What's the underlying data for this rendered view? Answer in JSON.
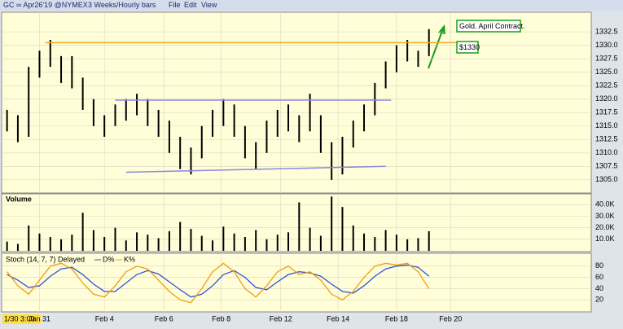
{
  "header": {
    "symbol": "GC ∞ Apr26'19 @NYMEX",
    "period": "3 Weeks/Hourly bars",
    "menu": [
      "File",
      "Edit",
      "View"
    ]
  },
  "chart_data": {
    "type": "price-bars",
    "color": "#000000",
    "xlim": [
      -0.5,
      54
    ],
    "xticks": [
      {
        "value": 3,
        "label": "Jan 31"
      },
      {
        "value": 9,
        "label": "Feb 4"
      },
      {
        "value": 14.5,
        "label": "Feb 6"
      },
      {
        "value": 19.8,
        "label": "Feb 8"
      },
      {
        "value": 25.3,
        "label": "Feb 12"
      },
      {
        "value": 30.6,
        "label": "Feb 14"
      },
      {
        "value": 36,
        "label": "Feb 18"
      },
      {
        "value": 41,
        "label": "Feb 20"
      }
    ],
    "start_label": "1/30 3:00",
    "ylim": [
      1302.7,
      1336
    ],
    "yticks": [
      {
        "value": 1305,
        "label": "1305.0"
      },
      1307.5,
      {
        "value": 1310,
        "label": "1310.0"
      },
      1312.5,
      {
        "value": 1315,
        "label": "1315.0"
      },
      1317.5,
      {
        "value": 1320,
        "label": "1320.0"
      },
      1322.5,
      {
        "value": 1325,
        "label": "1325.0"
      },
      1327.5,
      {
        "value": 1330,
        "label": "1330.0"
      },
      1332.5
    ],
    "grid": true,
    "high": [
      1318,
      1317,
      1326,
      1329,
      1331,
      1328,
      1328,
      1324,
      1320,
      1317,
      1319,
      1320,
      1321,
      1320,
      1318,
      1316,
      1313,
      1311,
      1315,
      1318,
      1320,
      1319,
      1315,
      1312,
      1316,
      1318,
      1319,
      1317,
      1321,
      1317,
      1312,
      1313,
      1316,
      1319,
      1323,
      1327,
      1330,
      1331,
      1329,
      1333
    ],
    "low": [
      1314,
      1312,
      1313,
      1324,
      1326,
      1323,
      1322,
      1318,
      1315,
      1313,
      1315,
      1316,
      1317,
      1315,
      1313,
      1310,
      1307,
      1306,
      1309,
      1313,
      1315,
      1313,
      1309,
      1307,
      1310,
      1313,
      1314,
      1312,
      1314,
      1310,
      1305,
      1306,
      1311,
      1314,
      1317,
      1322,
      1325,
      1327,
      1326,
      1328
    ],
    "trend_lines": [
      {
        "color": "#f5a623",
        "x": [
          3.5,
          41.5
        ],
        "y": [
          1330.5,
          1330.5
        ]
      },
      {
        "color": "#8a8ae0",
        "x": [
          10,
          35.5
        ],
        "y": [
          1319.8,
          1319.8
        ]
      },
      {
        "color": "#8a8ae0",
        "x": [
          11,
          35
        ],
        "y": [
          1306.4,
          1307.5
        ]
      }
    ],
    "annotations": [
      {
        "text": "Gold. April Contract.",
        "color": "#1a9e1a"
      },
      {
        "text": "$1330",
        "color": "#1a9e1a"
      }
    ],
    "volume": {
      "title": "Volume",
      "color": "#000000",
      "ylim": [
        0,
        48000
      ],
      "yticks": [
        {
          "value": 10000,
          "label": "10.0K"
        },
        {
          "value": 20000,
          "label": "20.0K"
        },
        {
          "value": 30000,
          "label": "30.0K"
        },
        {
          "value": 40000,
          "label": "40.0K"
        }
      ],
      "values": [
        8000,
        6000,
        22000,
        15000,
        12000,
        10000,
        14000,
        33000,
        18000,
        12000,
        20000,
        9000,
        16000,
        14000,
        11000,
        17000,
        25000,
        19000,
        13000,
        9000,
        21000,
        15000,
        12000,
        18000,
        10000,
        14000,
        16000,
        42000,
        20000,
        13000,
        47000,
        38000,
        22000,
        15000,
        12000,
        18000,
        14000,
        10000,
        11000,
        17000
      ]
    },
    "stoch": {
      "title": "Stoch (14, 7, 7) Delayed",
      "ylim": [
        0,
        100
      ],
      "yticks": [
        20,
        40,
        60,
        80
      ],
      "series": [
        {
          "name": "D%",
          "color": "#2f55d4",
          "values": [
            65,
            55,
            42,
            45,
            62,
            75,
            78,
            65,
            48,
            35,
            35,
            50,
            65,
            72,
            66,
            52,
            38,
            25,
            30,
            45,
            65,
            72,
            60,
            42,
            38,
            52,
            65,
            70,
            68,
            62,
            48,
            35,
            32,
            45,
            62,
            75,
            80,
            82,
            78,
            62
          ]
        },
        {
          "name": "K%",
          "color": "#f39c12",
          "values": [
            70,
            45,
            30,
            55,
            80,
            85,
            75,
            50,
            30,
            25,
            45,
            70,
            80,
            75,
            55,
            35,
            20,
            15,
            40,
            70,
            85,
            70,
            40,
            25,
            45,
            70,
            80,
            65,
            70,
            55,
            30,
            20,
            35,
            60,
            80,
            85,
            82,
            85,
            70,
            40
          ]
        }
      ]
    }
  }
}
